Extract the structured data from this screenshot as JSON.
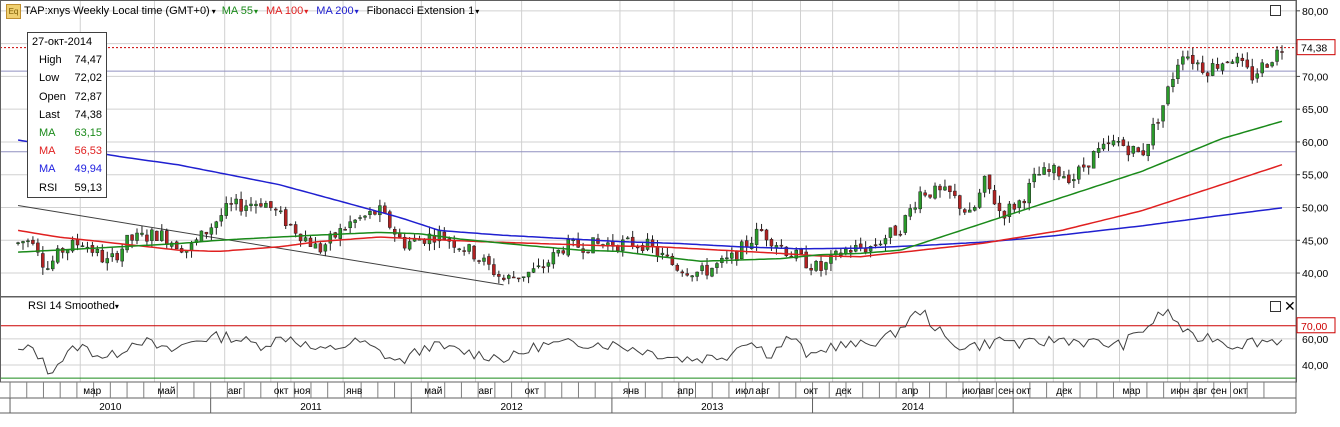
{
  "legend": {
    "symbol_icon": "eq-icon",
    "symbol": "TAP:xnys Weekly Local time (GMT+0)",
    "ma1": "MA 55",
    "ma2": "MA 100",
    "ma3": "MA 200",
    "fib": "Fibonacci Extension 1"
  },
  "rsi_title": "RSI 14 Smoothed",
  "info": {
    "date": "27-окт-2014",
    "rows": [
      {
        "k": "High",
        "v": "74,47",
        "color": "#000000"
      },
      {
        "k": "Low",
        "v": "72,02",
        "color": "#000000"
      },
      {
        "k": "Open",
        "v": "72,87",
        "color": "#000000"
      },
      {
        "k": "Last",
        "v": "74,38",
        "color": "#000000"
      },
      {
        "k": "MA",
        "v": "63,15",
        "color": "#1a8a1a"
      },
      {
        "k": "MA",
        "v": "56,53",
        "color": "#e02020"
      },
      {
        "k": "MA",
        "v": "49,94",
        "color": "#2020e0"
      },
      {
        "k": "RSI",
        "v": "59,13",
        "color": "#000000"
      }
    ]
  },
  "colors": {
    "up": "#2a9a2a",
    "down": "#b22222",
    "ma55": "#1a8a1a",
    "ma100": "#e02020",
    "ma200": "#2020d0",
    "last_line": "#cc0000",
    "rsi_line": "#404040",
    "rsi_70": "#cc0000",
    "rsi_30": "#1a8a1a",
    "grid": "#d0d0d0",
    "fib": "#404040",
    "level": "#9090c0"
  },
  "chart_data": {
    "type": "candlestick",
    "title": "TAP:xnys Weekly",
    "price_axis": {
      "ticks": [
        40,
        45,
        50,
        55,
        60,
        65,
        70,
        75,
        80
      ],
      "tick_labels": [
        "40,00",
        "45,00",
        "50,00",
        "55,00",
        "60,00",
        "65,00",
        "70,00",
        "75,00",
        "80,00"
      ],
      "range": [
        36.5,
        81.5
      ],
      "last_label": "74,38",
      "last_value": 74.38
    },
    "rsi_axis": {
      "ticks": [
        40,
        60
      ],
      "tick_labels": [
        "40,00",
        "60,00"
      ],
      "range": [
        27,
        92
      ],
      "level_70": 70,
      "level_70_label": "70,00",
      "level_30": 30
    },
    "month_labels": [
      {
        "t": 0.35,
        "label": "мар"
      },
      {
        "t": 0.72,
        "label": "май"
      },
      {
        "t": 1.07,
        "label": "авг"
      },
      {
        "t": 1.3,
        "label": "окт"
      },
      {
        "t": 1.4,
        "label": "ноя"
      },
      {
        "t": 1.66,
        "label": "янв"
      },
      {
        "t": 2.05,
        "label": "май"
      },
      {
        "t": 2.32,
        "label": "авг"
      },
      {
        "t": 2.55,
        "label": "окт"
      },
      {
        "t": 3.04,
        "label": "янв"
      },
      {
        "t": 3.31,
        "label": "апр"
      },
      {
        "t": 3.6,
        "label": "июл"
      },
      {
        "t": 3.7,
        "label": "авг"
      },
      {
        "t": 3.94,
        "label": "окт"
      },
      {
        "t": 4.1,
        "label": "дек"
      },
      {
        "t": 4.43,
        "label": "апр"
      },
      {
        "t": 4.73,
        "label": "июл"
      },
      {
        "t": 4.82,
        "label": "авг"
      },
      {
        "t": 4.91,
        "label": "сен"
      },
      {
        "t": 5.0,
        "label": "окт"
      },
      {
        "t": 5.2,
        "label": "дек"
      },
      {
        "t": 5.53,
        "label": "мар"
      },
      {
        "t": 5.77,
        "label": "июн"
      },
      {
        "t": 5.88,
        "label": "авг"
      },
      {
        "t": 5.97,
        "label": "сен"
      },
      {
        "t": 6.08,
        "label": "окт"
      }
    ],
    "year_labels": [
      {
        "t": 0.5,
        "label": "2010"
      },
      {
        "t": 1.5,
        "label": "2011"
      },
      {
        "t": 2.5,
        "label": "2012"
      },
      {
        "t": 3.5,
        "label": "2013"
      },
      {
        "t": 4.5,
        "label": "2014"
      }
    ],
    "close_keypoints": [
      [
        0,
        44.5
      ],
      [
        0.08,
        45.5
      ],
      [
        0.14,
        40.5
      ],
      [
        0.22,
        43.5
      ],
      [
        0.32,
        44.8
      ],
      [
        0.45,
        41.5
      ],
      [
        0.55,
        45
      ],
      [
        0.7,
        46
      ],
      [
        0.85,
        43.5
      ],
      [
        1.05,
        50
      ],
      [
        1.22,
        51
      ],
      [
        1.35,
        47.5
      ],
      [
        1.5,
        43.5
      ],
      [
        1.65,
        47.5
      ],
      [
        1.8,
        49.5
      ],
      [
        1.92,
        44.5
      ],
      [
        2.1,
        46
      ],
      [
        2.27,
        43
      ],
      [
        2.42,
        39
      ],
      [
        2.6,
        40.5
      ],
      [
        2.72,
        44
      ],
      [
        2.95,
        44.5
      ],
      [
        3.12,
        44.5
      ],
      [
        3.28,
        41
      ],
      [
        3.4,
        40
      ],
      [
        3.55,
        42
      ],
      [
        3.7,
        46.5
      ],
      [
        3.85,
        43
      ],
      [
        4.0,
        40.5
      ],
      [
        4.12,
        43.5
      ],
      [
        4.25,
        44
      ],
      [
        4.4,
        47
      ],
      [
        4.5,
        52.5
      ],
      [
        4.65,
        52
      ],
      [
        4.75,
        48.5
      ],
      [
        4.82,
        54
      ],
      [
        4.9,
        49
      ],
      [
        5.0,
        51
      ],
      [
        5.08,
        55
      ],
      [
        5.18,
        55.5
      ],
      [
        5.26,
        54.5
      ],
      [
        5.36,
        58
      ],
      [
        5.48,
        60
      ],
      [
        5.6,
        58
      ],
      [
        5.7,
        65
      ],
      [
        5.8,
        74
      ],
      [
        5.92,
        71
      ],
      [
        6.05,
        73
      ],
      [
        6.15,
        70
      ],
      [
        6.3,
        74.38
      ]
    ],
    "rsi_keypoints": [
      [
        0,
        50
      ],
      [
        0.08,
        53
      ],
      [
        0.15,
        35
      ],
      [
        0.3,
        55
      ],
      [
        0.45,
        45
      ],
      [
        0.6,
        60
      ],
      [
        0.75,
        50
      ],
      [
        0.9,
        60
      ],
      [
        1.05,
        62
      ],
      [
        1.2,
        55
      ],
      [
        1.35,
        62
      ],
      [
        1.5,
        50
      ],
      [
        1.7,
        58
      ],
      [
        1.9,
        42
      ],
      [
        2.05,
        55
      ],
      [
        2.3,
        48
      ],
      [
        2.45,
        45
      ],
      [
        2.6,
        55
      ],
      [
        2.85,
        57
      ],
      [
        3.0,
        55
      ],
      [
        3.15,
        50
      ],
      [
        3.3,
        45
      ],
      [
        3.4,
        45
      ],
      [
        3.55,
        48
      ],
      [
        3.62,
        60
      ],
      [
        3.75,
        48
      ],
      [
        3.85,
        62
      ],
      [
        3.95,
        45
      ],
      [
        4.05,
        55
      ],
      [
        4.2,
        55
      ],
      [
        4.35,
        62
      ],
      [
        4.5,
        82
      ],
      [
        4.65,
        55
      ],
      [
        4.8,
        55
      ],
      [
        4.92,
        60
      ],
      [
        5.0,
        55
      ],
      [
        5.2,
        60
      ],
      [
        5.35,
        57
      ],
      [
        5.5,
        55
      ],
      [
        5.65,
        72
      ],
      [
        5.72,
        82
      ],
      [
        5.85,
        60
      ],
      [
        5.95,
        62
      ],
      [
        6.05,
        55
      ],
      [
        6.15,
        58
      ],
      [
        6.3,
        59.13
      ]
    ],
    "ma55_keypoints": [
      [
        0,
        43.2
      ],
      [
        0.2,
        43.5
      ],
      [
        0.5,
        44
      ],
      [
        0.8,
        44.5
      ],
      [
        1.0,
        45
      ],
      [
        1.3,
        45.5
      ],
      [
        1.5,
        45.8
      ],
      [
        1.8,
        46.2
      ],
      [
        2.0,
        46
      ],
      [
        2.2,
        45.2
      ],
      [
        2.5,
        44.3
      ],
      [
        2.8,
        43.5
      ],
      [
        3.0,
        43.3
      ],
      [
        3.2,
        42.5
      ],
      [
        3.4,
        41.8
      ],
      [
        3.6,
        42
      ],
      [
        3.8,
        42.2
      ],
      [
        4.0,
        42.8
      ],
      [
        4.2,
        43
      ],
      [
        4.4,
        43.5
      ],
      [
        4.6,
        45.5
      ],
      [
        4.8,
        47.5
      ],
      [
        5.0,
        49.5
      ],
      [
        5.2,
        51.5
      ],
      [
        5.4,
        53.5
      ],
      [
        5.6,
        55.5
      ],
      [
        5.8,
        58
      ],
      [
        6.0,
        60.5
      ],
      [
        6.3,
        63.15
      ]
    ],
    "ma100_keypoints": [
      [
        0,
        46.5
      ],
      [
        0.2,
        45.5
      ],
      [
        0.5,
        44.5
      ],
      [
        0.8,
        43.5
      ],
      [
        1.0,
        43.3
      ],
      [
        1.3,
        44
      ],
      [
        1.5,
        44.8
      ],
      [
        1.8,
        45.5
      ],
      [
        2.0,
        45.2
      ],
      [
        2.3,
        44.8
      ],
      [
        2.6,
        44.5
      ],
      [
        2.9,
        44.2
      ],
      [
        3.2,
        44
      ],
      [
        3.5,
        43.5
      ],
      [
        3.8,
        43
      ],
      [
        4.0,
        42.6
      ],
      [
        4.2,
        42.5
      ],
      [
        4.5,
        43.5
      ],
      [
        4.8,
        44.5
      ],
      [
        5.0,
        45.5
      ],
      [
        5.2,
        46.5
      ],
      [
        5.4,
        48
      ],
      [
        5.6,
        49.5
      ],
      [
        5.8,
        51.5
      ],
      [
        6.0,
        53.5
      ],
      [
        6.3,
        56.53
      ]
    ],
    "ma200_keypoints": [
      [
        0,
        60.3
      ],
      [
        0.2,
        59.3
      ],
      [
        0.5,
        57.8
      ],
      [
        0.8,
        56.5
      ],
      [
        1.0,
        55.3
      ],
      [
        1.3,
        53.5
      ],
      [
        1.6,
        51
      ],
      [
        1.9,
        48.5
      ],
      [
        2.1,
        46.5
      ],
      [
        2.4,
        45.8
      ],
      [
        2.7,
        45.3
      ],
      [
        3.0,
        44.8
      ],
      [
        3.3,
        44.5
      ],
      [
        3.6,
        44
      ],
      [
        3.9,
        43.7
      ],
      [
        4.2,
        43.8
      ],
      [
        4.5,
        44.2
      ],
      [
        4.8,
        44.7
      ],
      [
        5.0,
        45.2
      ],
      [
        5.2,
        45.8
      ],
      [
        5.4,
        46.5
      ],
      [
        5.6,
        47.2
      ],
      [
        5.8,
        48
      ],
      [
        6.0,
        48.8
      ],
      [
        6.3,
        49.94
      ]
    ],
    "horizontal_levels": [
      70.8,
      58.5
    ],
    "fib_line": {
      "p1": [
        0,
        50.3
      ],
      "p2": [
        2.42,
        38.2
      ]
    },
    "candle_count": 256
  }
}
